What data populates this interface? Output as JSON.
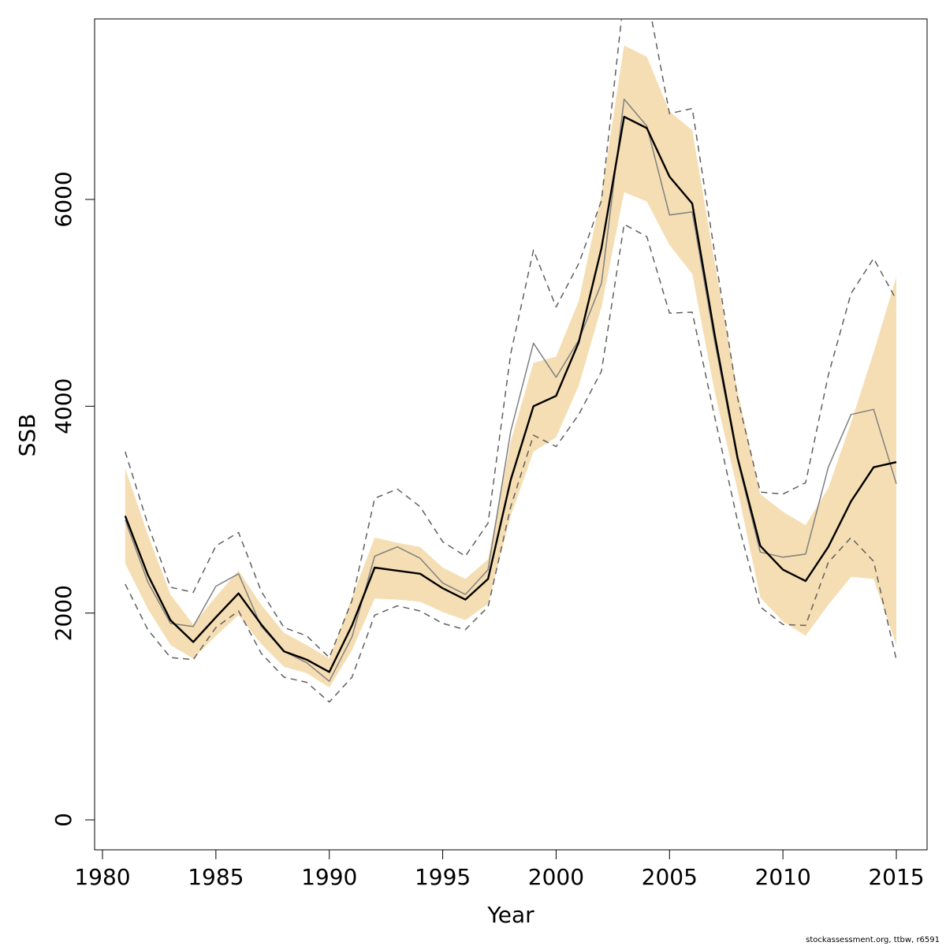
{
  "chart_data": {
    "type": "line",
    "title": "",
    "xlabel": "Year",
    "ylabel": "SSB",
    "xlim": [
      1980,
      2015
    ],
    "ylim": [
      0,
      7800
    ],
    "x_ticks": [
      "1980",
      "1985",
      "1990",
      "1995",
      "2000",
      "2005",
      "2010",
      "2015"
    ],
    "y_ticks": [
      "0",
      "2000",
      "4000",
      "6000"
    ],
    "x": [
      1981,
      1982,
      1983,
      1984,
      1985,
      1986,
      1987,
      1988,
      1989,
      1990,
      1991,
      1992,
      1993,
      1994,
      1995,
      1996,
      1997,
      1998,
      1999,
      2000,
      2001,
      2002,
      2003,
      2004,
      2005,
      2006,
      2007,
      2008,
      2009,
      2010,
      2011,
      2012,
      2013,
      2014,
      2015
    ],
    "band_lower": [
      2480,
      2040,
      1690,
      1560,
      1780,
      1980,
      1700,
      1480,
      1420,
      1280,
      1640,
      2140,
      2130,
      2110,
      2010,
      1930,
      2090,
      2940,
      3560,
      3700,
      4200,
      4960,
      6070,
      5980,
      5560,
      5280,
      4130,
      3190,
      2150,
      1920,
      1780,
      2080,
      2350,
      2330,
      1690
    ],
    "band_upper": [
      3400,
      2760,
      2180,
      1890,
      2160,
      2410,
      2080,
      1810,
      1690,
      1560,
      2150,
      2730,
      2680,
      2640,
      2440,
      2330,
      2520,
      3660,
      4420,
      4480,
      5020,
      6050,
      7490,
      7380,
      6850,
      6670,
      5380,
      4150,
      3150,
      2980,
      2850,
      3210,
      3840,
      4520,
      5250
    ],
    "series": [
      {
        "values": [
          2940,
          2370,
          1930,
          1720,
          1960,
          2190,
          1890,
          1630,
          1550,
          1430,
          1880,
          2440,
          2410,
          2380,
          2240,
          2130,
          2330,
          3290,
          4000,
          4100,
          4620,
          5530,
          6800,
          6690,
          6220,
          5960,
          4680,
          3500,
          2650,
          2420,
          2310,
          2640,
          3080,
          3410,
          3460
        ],
        "color": "#000000",
        "dash": "solid",
        "width": 2.4
      },
      {
        "values": [
          2900,
          2300,
          1900,
          1870,
          2260,
          2380,
          1870,
          1630,
          1520,
          1340,
          1770,
          2550,
          2640,
          2530,
          2290,
          2180,
          2420,
          3760,
          4610,
          4280,
          4640,
          5190,
          6970,
          6710,
          5850,
          5880,
          4620,
          3480,
          2590,
          2540,
          2570,
          3410,
          3920,
          3970,
          3250
        ],
        "color": "#808080",
        "dash": "solid",
        "width": 1.5
      },
      {
        "values": [
          3560,
          2860,
          2250,
          2200,
          2650,
          2780,
          2210,
          1860,
          1780,
          1570,
          2120,
          3110,
          3200,
          3030,
          2690,
          2550,
          2870,
          4510,
          5510,
          4960,
          5380,
          5990,
          7980,
          7990,
          6830,
          6880,
          5470,
          4080,
          3170,
          3150,
          3260,
          4300,
          5090,
          5430,
          5030
        ],
        "color": "#606060",
        "dash": "dashed",
        "width": 1.5
      },
      {
        "values": [
          2280,
          1840,
          1570,
          1550,
          1860,
          2020,
          1610,
          1380,
          1330,
          1140,
          1380,
          1980,
          2070,
          2020,
          1900,
          1840,
          2060,
          3030,
          3720,
          3610,
          3920,
          4340,
          5760,
          5640,
          4900,
          4910,
          3890,
          2890,
          2060,
          1890,
          1880,
          2490,
          2730,
          2500,
          1550
        ],
        "color": "#606060",
        "dash": "dashed",
        "width": 1.5
      }
    ],
    "band_color": "#F5DEB3",
    "grid": false,
    "legend": "none"
  },
  "footer": "stockassessment.org, ttbw, r6591"
}
